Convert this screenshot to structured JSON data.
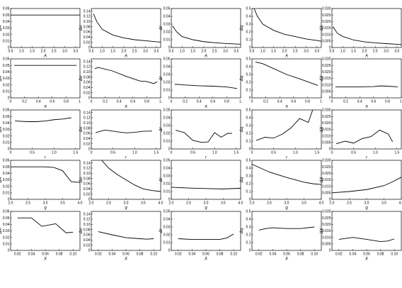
{
  "chart_data": [
    {
      "type": "line",
      "xlabel": "A",
      "ylabel": "ΔA",
      "xlim": [
        0.5,
        3.7
      ],
      "ylim": [
        0,
        0.06
      ],
      "xticks": [
        "0.5",
        "1.0",
        "1.5",
        "2.0",
        "2.5",
        "3.0",
        "3.5"
      ],
      "yticks": [
        "0",
        "0.01",
        "0.02",
        "0.03",
        "0.04",
        "0.05",
        "0.06"
      ],
      "x": [
        0.5,
        0.75,
        1.0,
        1.5,
        2.0,
        2.5,
        3.0,
        3.5,
        3.7
      ],
      "values": [
        0.05,
        0.05,
        0.05,
        0.05,
        0.05,
        0.05,
        0.05,
        0.05,
        0.05
      ]
    },
    {
      "type": "line",
      "xlabel": "A",
      "ylabel": "Δα",
      "xlim": [
        0.5,
        3.7
      ],
      "ylim": [
        0,
        0.15
      ],
      "xticks": [
        "0.5",
        "1.0",
        "1.5",
        "2.0",
        "2.5",
        "3.0",
        "3.5"
      ],
      "yticks": [
        "0",
        "0.02",
        "0.04",
        "0.06",
        "0.08",
        "0.10",
        "0.12",
        "0.14"
      ],
      "x": [
        0.6,
        0.75,
        1.0,
        1.5,
        2.0,
        2.5,
        3.0,
        3.5,
        3.7
      ],
      "values": [
        0.13,
        0.1,
        0.07,
        0.048,
        0.037,
        0.03,
        0.026,
        0.022,
        0.021
      ]
    },
    {
      "type": "line",
      "xlabel": "A",
      "ylabel": "Δr",
      "xlim": [
        0.5,
        3.7
      ],
      "ylim": [
        0,
        0.05
      ],
      "xticks": [
        "0.5",
        "1.0",
        "1.5",
        "2.0",
        "2.5",
        "3.0",
        "3.5"
      ],
      "yticks": [
        "0",
        "0.01",
        "0.02",
        "0.03",
        "0.04",
        "0.05"
      ],
      "x": [
        0.55,
        0.75,
        1.0,
        1.5,
        2.0,
        2.5,
        3.0,
        3.5,
        3.7
      ],
      "values": [
        0.028,
        0.02,
        0.014,
        0.01,
        0.0075,
        0.0062,
        0.0052,
        0.0045,
        0.0043
      ]
    },
    {
      "type": "line",
      "xlabel": "A",
      "ylabel": "Δq",
      "xlim": [
        0.5,
        3.7
      ],
      "ylim": [
        0,
        0.5
      ],
      "xticks": [
        "0.5",
        "1.0",
        "1.5",
        "2.0",
        "2.5",
        "3.0",
        "3.5"
      ],
      "yticks": [
        "0",
        "0.1",
        "0.2",
        "0.3",
        "0.4",
        "0.5"
      ],
      "x": [
        0.6,
        0.75,
        1.0,
        1.5,
        2.0,
        2.5,
        3.0,
        3.5,
        3.7
      ],
      "values": [
        0.5,
        0.4,
        0.3,
        0.22,
        0.17,
        0.14,
        0.11,
        0.09,
        0.08
      ]
    },
    {
      "type": "line",
      "xlabel": "A",
      "ylabel": "ΔX",
      "xlim": [
        0.5,
        3.7
      ],
      "ylim": [
        0,
        0.03
      ],
      "xticks": [
        "0.5",
        "1.0",
        "1.5",
        "2.0",
        "2.5",
        "3.0",
        "3.5"
      ],
      "yticks": [
        "0",
        "0.005",
        "0.010",
        "0.015",
        "0.020",
        "0.025",
        "0.030"
      ],
      "x": [
        0.55,
        0.75,
        1.0,
        1.5,
        2.0,
        2.5,
        3.0,
        3.5,
        3.7
      ],
      "values": [
        0.016,
        0.011,
        0.0085,
        0.0058,
        0.0044,
        0.0036,
        0.003,
        0.0025,
        0.0023
      ]
    },
    {
      "type": "line",
      "xlabel": "a",
      "ylabel": "ΔA",
      "xlim": [
        0,
        1
      ],
      "ylim": [
        0,
        0.06
      ],
      "xticks": [
        "0",
        "0.2",
        "0.4",
        "0.6",
        "0.8",
        "1."
      ],
      "yticks": [
        "0",
        "0.01",
        "0.02",
        "0.03",
        "0.04",
        "0.05",
        "0.06"
      ],
      "x": [
        0.05,
        0.2,
        0.4,
        0.6,
        0.8,
        0.95
      ],
      "values": [
        0.05,
        0.05,
        0.05,
        0.05,
        0.05,
        0.05
      ]
    },
    {
      "type": "line",
      "xlabel": "a",
      "ylabel": "Δα",
      "xlim": [
        0,
        1
      ],
      "ylim": [
        0,
        0.15
      ],
      "xticks": [
        "0",
        "0.2",
        "0.4",
        "0.6",
        "0.8",
        "1."
      ],
      "yticks": [
        "0",
        "0.02",
        "0.04",
        "0.06",
        "0.08",
        "0.10",
        "0.12",
        "0.14"
      ],
      "x": [
        0.05,
        0.1,
        0.3,
        0.5,
        0.7,
        0.8,
        0.9,
        0.95
      ],
      "values": [
        0.112,
        0.117,
        0.104,
        0.083,
        0.065,
        0.063,
        0.055,
        0.062
      ]
    },
    {
      "type": "line",
      "xlabel": "a",
      "ylabel": "Δr",
      "xlim": [
        0,
        1
      ],
      "ylim": [
        0,
        0.05
      ],
      "xticks": [
        "0",
        "0.2",
        "0.4",
        "0.6",
        "0.8",
        "1."
      ],
      "yticks": [
        "0",
        "0.01",
        "0.02",
        "0.03",
        "0.04",
        "0.05"
      ],
      "x": [
        0.05,
        0.2,
        0.4,
        0.6,
        0.8,
        0.95
      ],
      "values": [
        0.0175,
        0.0165,
        0.0155,
        0.015,
        0.014,
        0.012
      ]
    },
    {
      "type": "line",
      "xlabel": "a",
      "ylabel": "Δq",
      "xlim": [
        0,
        1
      ],
      "ylim": [
        0,
        0.5
      ],
      "xticks": [
        "0",
        "0.2",
        "0.4",
        "0.6",
        "0.8",
        "1."
      ],
      "yticks": [
        "0",
        "0.1",
        "0.2",
        "0.3",
        "0.4",
        "0.5"
      ],
      "x": [
        0.05,
        0.15,
        0.3,
        0.5,
        0.7,
        0.95
      ],
      "values": [
        0.46,
        0.44,
        0.38,
        0.3,
        0.24,
        0.16
      ]
    },
    {
      "type": "line",
      "xlabel": "a",
      "ylabel": "ΔX",
      "xlim": [
        0,
        1
      ],
      "ylim": [
        0,
        0.03
      ],
      "xticks": [
        "0",
        "0.2",
        "0.4",
        "0.6",
        "0.8",
        "1."
      ],
      "yticks": [
        "0",
        "0.005",
        "0.010",
        "0.015",
        "0.020",
        "0.025",
        "0.030"
      ],
      "x": [
        0.05,
        0.2,
        0.4,
        0.6,
        0.7,
        0.8,
        0.95
      ],
      "values": [
        0.0085,
        0.0085,
        0.0085,
        0.0087,
        0.0092,
        0.009,
        0.0085
      ]
    },
    {
      "type": "line",
      "xlabel": "r",
      "ylabel": "ΔA",
      "xlim": [
        0,
        1.6
      ],
      "ylim": [
        0,
        0.06
      ],
      "xticks": [
        "0",
        "0.5",
        "1.0",
        "1.5"
      ],
      "yticks": [
        "0",
        "0.01",
        "0.02",
        "0.03",
        "0.04",
        "0.05",
        "0.06"
      ],
      "x": [
        0.1,
        0.4,
        0.6,
        0.8,
        1.0,
        1.2,
        1.4
      ],
      "values": [
        0.043,
        0.042,
        0.042,
        0.043,
        0.045,
        0.046,
        0.048
      ]
    },
    {
      "type": "line",
      "xlabel": "r",
      "ylabel": "Δα",
      "xlim": [
        0,
        1.6
      ],
      "ylim": [
        0,
        0.15
      ],
      "xticks": [
        "0",
        "0.5",
        "1.0",
        "1.5"
      ],
      "yticks": [
        "0",
        "0.02",
        "0.04",
        "0.06",
        "0.08",
        "0.10",
        "0.12",
        "0.14"
      ],
      "x": [
        0.1,
        0.3,
        0.4,
        0.6,
        0.8,
        1.0,
        1.2,
        1.4
      ],
      "values": [
        0.063,
        0.072,
        0.071,
        0.066,
        0.062,
        0.064,
        0.068,
        0.069
      ]
    },
    {
      "type": "line",
      "xlabel": "r",
      "ylabel": "Δr",
      "xlim": [
        0,
        1.6
      ],
      "ylim": [
        0,
        0.05
      ],
      "xticks": [
        "0",
        "0.5",
        "1.0",
        "1.5"
      ],
      "yticks": [
        "0",
        "0.01",
        "0.02",
        "0.03",
        "0.04",
        "0.05"
      ],
      "x": [
        0.1,
        0.3,
        0.5,
        0.7,
        0.85,
        1.0,
        1.15,
        1.3,
        1.4
      ],
      "values": [
        0.024,
        0.021,
        0.011,
        0.0085,
        0.009,
        0.021,
        0.015,
        0.02,
        0.02
      ]
    },
    {
      "type": "line",
      "xlabel": "r",
      "ylabel": "Δq",
      "xlim": [
        0,
        1.6
      ],
      "ylim": [
        0,
        0.5
      ],
      "xticks": [
        "0",
        "0.5",
        "1.0",
        "1.5"
      ],
      "yticks": [
        "0",
        "0.1",
        "0.2",
        "0.3",
        "0.4",
        "0.5"
      ],
      "x": [
        0.1,
        0.3,
        0.5,
        0.7,
        0.9,
        1.1,
        1.3,
        1.4
      ],
      "values": [
        0.11,
        0.15,
        0.14,
        0.19,
        0.27,
        0.39,
        0.34,
        0.5
      ]
    },
    {
      "type": "line",
      "xlabel": "r",
      "ylabel": "ΔX",
      "xlim": [
        0,
        1.6
      ],
      "ylim": [
        0,
        0.03
      ],
      "xticks": [
        "0",
        "0.5",
        "1.0",
        "1.5"
      ],
      "yticks": [
        "0",
        "0.005",
        "0.010",
        "0.015",
        "0.020",
        "0.025",
        "0.030"
      ],
      "x": [
        0.1,
        0.3,
        0.5,
        0.7,
        0.9,
        1.1,
        1.3,
        1.4
      ],
      "values": [
        0.004,
        0.006,
        0.0045,
        0.008,
        0.0095,
        0.0145,
        0.0115,
        0.0055
      ]
    },
    {
      "type": "line",
      "xlabel": "q",
      "ylabel": "ΔA",
      "xlim": [
        2,
        4
      ],
      "ylim": [
        0,
        0.06
      ],
      "xticks": [
        "2.0",
        "2.5",
        "3.0",
        "3.5",
        "4.0"
      ],
      "yticks": [
        "0",
        "0.01",
        "0.02",
        "0.03",
        "0.04",
        "0.05",
        "0.06"
      ],
      "x": [
        2.0,
        2.5,
        3.0,
        3.25,
        3.5,
        3.75,
        4.0
      ],
      "values": [
        0.05,
        0.05,
        0.05,
        0.049,
        0.044,
        0.027,
        0.026
      ]
    },
    {
      "type": "line",
      "xlabel": "q",
      "ylabel": "Δα",
      "xlim": [
        2,
        4
      ],
      "ylim": [
        0,
        0.15
      ],
      "xticks": [
        "2.0",
        "2.5",
        "3.0",
        "3.5",
        "4.0"
      ],
      "yticks": [
        "0",
        "0.02",
        "0.04",
        "0.06",
        "0.08",
        "0.10",
        "0.12",
        "0.14"
      ],
      "x": [
        2.3,
        2.5,
        2.75,
        3.0,
        3.25,
        3.5,
        3.75,
        4.0
      ],
      "values": [
        0.15,
        0.12,
        0.095,
        0.075,
        0.055,
        0.04,
        0.034,
        0.03
      ]
    },
    {
      "type": "line",
      "xlabel": "q",
      "ylabel": "Δr",
      "xlim": [
        2,
        4
      ],
      "ylim": [
        0,
        0.05
      ],
      "xticks": [
        "2.0",
        "2.5",
        "3.0",
        "3.5",
        "4.0"
      ],
      "yticks": [
        "0",
        "0.01",
        "0.02",
        "0.03",
        "0.04",
        "0.05"
      ],
      "x": [
        2.0,
        2.5,
        3.0,
        3.5,
        4.0
      ],
      "values": [
        0.0155,
        0.0145,
        0.0138,
        0.0133,
        0.0142
      ]
    },
    {
      "type": "line",
      "xlabel": "q",
      "ylabel": "Δq",
      "xlim": [
        2,
        4
      ],
      "ylim": [
        0,
        0.5
      ],
      "xticks": [
        "2.0",
        "2.5",
        "3.0",
        "3.5",
        "4.0"
      ],
      "yticks": [
        "0",
        "0.1",
        "0.2",
        "0.3",
        "0.4",
        "0.5"
      ],
      "x": [
        2.0,
        2.5,
        3.0,
        3.5,
        3.75,
        4.0
      ],
      "values": [
        0.45,
        0.35,
        0.28,
        0.22,
        0.2,
        0.19
      ]
    },
    {
      "type": "line",
      "xlabel": "q",
      "ylabel": "ΔX",
      "xlim": [
        2,
        4
      ],
      "ylim": [
        0,
        0.03
      ],
      "xticks": [
        "2.0",
        "2.5",
        "3.0",
        "3.5",
        "4.0"
      ],
      "yticks": [
        "0",
        "0.005",
        "0.010",
        "0.015",
        "0.020",
        "0.025",
        "0.030"
      ],
      "x": [
        2.0,
        2.5,
        3.0,
        3.5,
        3.75,
        4.0
      ],
      "values": [
        0.005,
        0.006,
        0.0075,
        0.0105,
        0.0135,
        0.017
      ]
    },
    {
      "type": "line",
      "xlabel": "X",
      "ylabel": "ΔA",
      "xlim": [
        0.01,
        0.11
      ],
      "ylim": [
        0,
        0.06
      ],
      "xticks": [
        "0.02",
        "0.04",
        "0.06",
        "0.08",
        "0.10"
      ],
      "yticks": [
        "0",
        "0.01",
        "0.02",
        "0.03",
        "0.04",
        "0.05",
        "0.06"
      ],
      "x": [
        0.02,
        0.04,
        0.055,
        0.075,
        0.09,
        0.1
      ],
      "values": [
        0.05,
        0.05,
        0.037,
        0.041,
        0.027,
        0.028
      ]
    },
    {
      "type": "line",
      "xlabel": "X",
      "ylabel": "Δα",
      "xlim": [
        0.01,
        0.11
      ],
      "ylim": [
        0,
        0.15
      ],
      "xticks": [
        "0.02",
        "0.04",
        "0.06",
        "0.08",
        "0.10"
      ],
      "yticks": [
        "0",
        "0.02",
        "0.04",
        "0.06",
        "0.08",
        "0.10",
        "0.12",
        "0.14"
      ],
      "x": [
        0.02,
        0.04,
        0.06,
        0.08,
        0.09,
        0.1
      ],
      "values": [
        0.072,
        0.06,
        0.049,
        0.045,
        0.043,
        0.045
      ]
    },
    {
      "type": "line",
      "xlabel": "X",
      "ylabel": "Δr",
      "xlim": [
        0.01,
        0.11
      ],
      "ylim": [
        0,
        0.05
      ],
      "xticks": [
        "0.02",
        "0.04",
        "0.06",
        "0.08",
        "0.10"
      ],
      "yticks": [
        "0",
        "0.01",
        "0.02",
        "0.03",
        "0.04",
        "0.05"
      ],
      "x": [
        0.02,
        0.04,
        0.06,
        0.08,
        0.09,
        0.1
      ],
      "values": [
        0.015,
        0.014,
        0.014,
        0.014,
        0.016,
        0.021
      ]
    },
    {
      "type": "line",
      "xlabel": "X",
      "ylabel": "Δq",
      "xlim": [
        0.01,
        0.11
      ],
      "ylim": [
        0,
        0.5
      ],
      "xticks": [
        "0.02",
        "0.04",
        "0.06",
        "0.08",
        "0.10"
      ],
      "yticks": [
        "0",
        "0.1",
        "0.2",
        "0.3",
        "0.4",
        "0.5"
      ],
      "x": [
        0.02,
        0.03,
        0.04,
        0.06,
        0.08,
        0.1
      ],
      "values": [
        0.26,
        0.28,
        0.29,
        0.28,
        0.28,
        0.3
      ]
    },
    {
      "type": "line",
      "xlabel": "X",
      "ylabel": "ΔX",
      "xlim": [
        0.01,
        0.11
      ],
      "ylim": [
        0,
        0.03
      ],
      "xticks": [
        "0.02",
        "0.04",
        "0.06",
        "0.08",
        "0.10"
      ],
      "yticks": [
        "0",
        "0.005",
        "0.010",
        "0.015",
        "0.020",
        "0.025",
        "0.030"
      ],
      "x": [
        0.02,
        0.04,
        0.06,
        0.08,
        0.09,
        0.1
      ],
      "values": [
        0.0085,
        0.01,
        0.0085,
        0.0068,
        0.0072,
        0.0088
      ]
    }
  ]
}
